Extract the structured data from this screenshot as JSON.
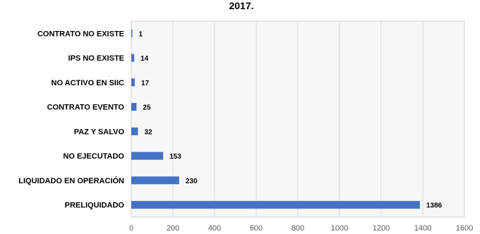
{
  "chart_data": {
    "type": "bar",
    "orientation": "horizontal",
    "title": "2017.",
    "categories": [
      "CONTRATO NO EXISTE",
      "IPS NO EXISTE",
      "NO ACTIVO EN SIIC",
      "CONTRATO EVENTO",
      "PAZ Y SALVO",
      "NO EJECUTADO",
      "LIQUIDADO EN OPERACIÓN",
      "PRELIQUIDADO"
    ],
    "values": [
      1,
      14,
      17,
      25,
      32,
      153,
      230,
      1386
    ],
    "xlim": [
      0,
      1600
    ],
    "x_ticks": [
      "0",
      "200",
      "400",
      "600",
      "800",
      "1000",
      "1200",
      "1400",
      "1600"
    ],
    "bar_color": "#4472c4",
    "grid": true,
    "xlabel": "",
    "ylabel": ""
  }
}
